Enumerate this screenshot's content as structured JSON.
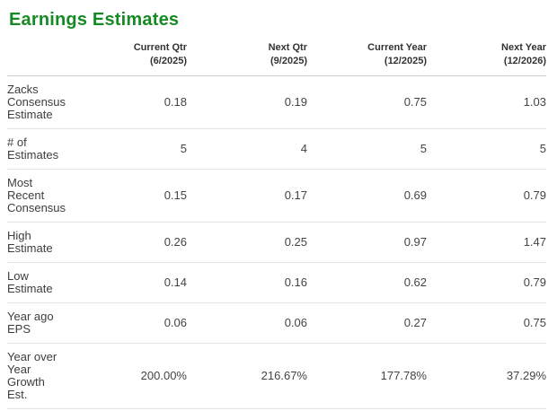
{
  "section": {
    "title": "Earnings Estimates"
  },
  "table": {
    "columns": [
      {
        "label": "Current Qtr",
        "period": "(6/2025)"
      },
      {
        "label": "Next Qtr",
        "period": "(9/2025)"
      },
      {
        "label": "Current Year",
        "period": "(12/2025)"
      },
      {
        "label": "Next Year",
        "period": "(12/2026)"
      }
    ],
    "rows": [
      {
        "label": "Zacks\nConsensus\nEstimate",
        "values": [
          "0.18",
          "0.19",
          "0.75",
          "1.03"
        ]
      },
      {
        "label": "# of\nEstimates",
        "values": [
          "5",
          "4",
          "5",
          "5"
        ]
      },
      {
        "label": "Most\nRecent\nConsensus",
        "values": [
          "0.15",
          "0.17",
          "0.69",
          "0.79"
        ]
      },
      {
        "label": "High\nEstimate",
        "values": [
          "0.26",
          "0.25",
          "0.97",
          "1.47"
        ]
      },
      {
        "label": "Low\nEstimate",
        "values": [
          "0.14",
          "0.16",
          "0.62",
          "0.79"
        ]
      },
      {
        "label": "Year ago\nEPS",
        "values": [
          "0.06",
          "0.06",
          "0.27",
          "0.75"
        ]
      },
      {
        "label": "Year over\nYear\nGrowth\nEst.",
        "values": [
          "200.00%",
          "216.67%",
          "177.78%",
          "37.29%"
        ]
      }
    ]
  },
  "colors": {
    "title_green": "#168b25",
    "header_text": "#333333",
    "body_text": "#444444",
    "row_divider": "#e2e2e2",
    "header_divider": "#c9ced4",
    "bottom_bar": "#ececec"
  },
  "chart_data": {
    "type": "table",
    "title": "Earnings Estimates",
    "columns": [
      "Current Qtr (6/2025)",
      "Next Qtr (9/2025)",
      "Current Year (12/2025)",
      "Next Year (12/2026)"
    ],
    "rows": [
      {
        "label": "Zacks Consensus Estimate",
        "values": [
          0.18,
          0.19,
          0.75,
          1.03
        ]
      },
      {
        "label": "# of Estimates",
        "values": [
          5,
          4,
          5,
          5
        ]
      },
      {
        "label": "Most Recent Consensus",
        "values": [
          0.15,
          0.17,
          0.69,
          0.79
        ]
      },
      {
        "label": "High Estimate",
        "values": [
          0.26,
          0.25,
          0.97,
          1.47
        ]
      },
      {
        "label": "Low Estimate",
        "values": [
          0.14,
          0.16,
          0.62,
          0.79
        ]
      },
      {
        "label": "Year ago EPS",
        "values": [
          0.06,
          0.06,
          0.27,
          0.75
        ]
      },
      {
        "label": "Year over Year Growth Est.",
        "values": [
          "200.00%",
          "216.67%",
          "177.78%",
          "37.29%"
        ]
      }
    ]
  }
}
